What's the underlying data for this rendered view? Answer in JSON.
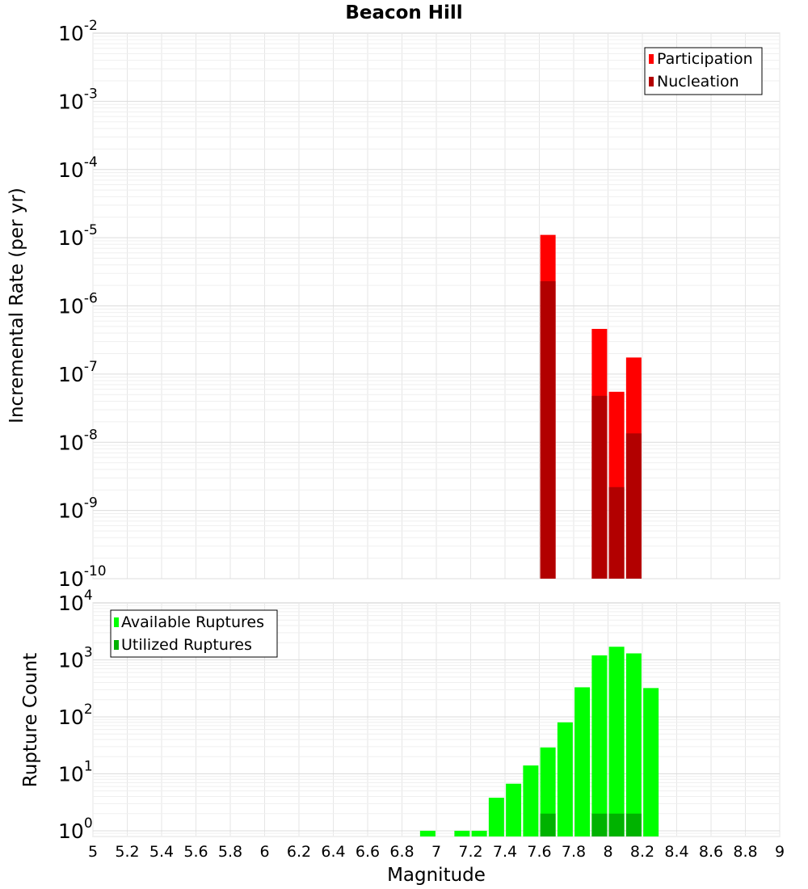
{
  "chart_data": [
    {
      "type": "bar",
      "title": "Beacon Hill",
      "xlabel": "",
      "ylabel": "Incremental Rate (per yr)",
      "yscale": "log",
      "ylim_exp": [
        -10,
        -2
      ],
      "xlim": [
        5,
        9
      ],
      "y_tick_labels": [
        {
          "base": "10",
          "exp": "-10"
        },
        {
          "base": "10",
          "exp": "-9"
        },
        {
          "base": "10",
          "exp": "-8"
        },
        {
          "base": "10",
          "exp": "-7"
        },
        {
          "base": "10",
          "exp": "-6"
        },
        {
          "base": "10",
          "exp": "-5"
        },
        {
          "base": "10",
          "exp": "-4"
        },
        {
          "base": "10",
          "exp": "-3"
        },
        {
          "base": "10",
          "exp": "-2"
        }
      ],
      "legend": {
        "position": "top-right",
        "entries": [
          "Participation",
          "Nucleation"
        ]
      },
      "series": [
        {
          "name": "Participation",
          "color": "#ff0000",
          "points": [
            {
              "x": 7.65,
              "y": 1.1e-05
            },
            {
              "x": 7.95,
              "y": 4.6e-07
            },
            {
              "x": 8.05,
              "y": 5.5e-08
            },
            {
              "x": 8.15,
              "y": 1.75e-07
            }
          ]
        },
        {
          "name": "Nucleation",
          "color": "#b20000",
          "points": [
            {
              "x": 7.65,
              "y": 2.3e-06
            },
            {
              "x": 7.95,
              "y": 4.8e-08
            },
            {
              "x": 8.05,
              "y": 2.2e-09
            },
            {
              "x": 8.15,
              "y": 1.35e-08
            }
          ]
        }
      ]
    },
    {
      "type": "bar",
      "title": "",
      "xlabel": "Magnitude",
      "ylabel": "Rupture Count",
      "yscale": "log",
      "ylim_exp": [
        -0.1,
        4
      ],
      "xlim": [
        5,
        9
      ],
      "x_tick_labels": [
        "5",
        "5.2",
        "5.4",
        "5.6",
        "5.8",
        "6",
        "6.2",
        "6.4",
        "6.6",
        "6.8",
        "7",
        "7.2",
        "7.4",
        "7.6",
        "7.8",
        "8",
        "8.2",
        "8.4",
        "8.6",
        "8.8",
        "9"
      ],
      "y_tick_labels": [
        {
          "base": "10",
          "exp": "0"
        },
        {
          "base": "10",
          "exp": "1"
        },
        {
          "base": "10",
          "exp": "2"
        },
        {
          "base": "10",
          "exp": "3"
        },
        {
          "base": "10",
          "exp": "4"
        }
      ],
      "legend": {
        "position": "top-left",
        "entries": [
          "Available Ruptures",
          "Utilized Ruptures"
        ]
      },
      "series": [
        {
          "name": "Available Ruptures",
          "color": "#00ff00",
          "points": [
            {
              "x": 6.95,
              "y": 1
            },
            {
              "x": 7.15,
              "y": 1
            },
            {
              "x": 7.25,
              "y": 1
            },
            {
              "x": 7.35,
              "y": 3.8
            },
            {
              "x": 7.45,
              "y": 6.7
            },
            {
              "x": 7.55,
              "y": 14
            },
            {
              "x": 7.65,
              "y": 29
            },
            {
              "x": 7.75,
              "y": 80
            },
            {
              "x": 7.85,
              "y": 330
            },
            {
              "x": 7.95,
              "y": 1200
            },
            {
              "x": 8.05,
              "y": 1700
            },
            {
              "x": 8.15,
              "y": 1300
            },
            {
              "x": 8.25,
              "y": 320
            }
          ]
        },
        {
          "name": "Utilized Ruptures",
          "color": "#00b200",
          "points": [
            {
              "x": 7.65,
              "y": 2
            },
            {
              "x": 7.95,
              "y": 2
            },
            {
              "x": 8.05,
              "y": 2
            },
            {
              "x": 8.15,
              "y": 2
            }
          ]
        }
      ]
    }
  ]
}
